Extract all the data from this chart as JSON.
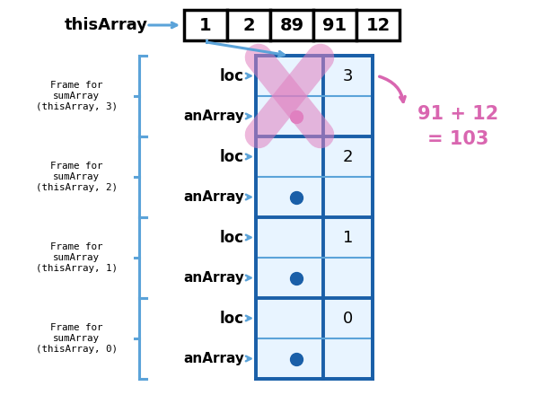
{
  "bg_color": "#ffffff",
  "blue": "#5ba3d9",
  "dark_blue": "#1a5fa8",
  "pink": "#d966b0",
  "pink_fill": "#e080c0",
  "array_values": [
    "1",
    "2",
    "89",
    "91",
    "12"
  ],
  "array_label": "thisArray",
  "stack_frames": [
    {
      "loc_val": "3",
      "label": "(thisArray, 3)",
      "highlighted": true
    },
    {
      "loc_val": "2",
      "label": "(thisArray, 2)",
      "highlighted": false
    },
    {
      "loc_val": "1",
      "label": "(thisArray, 1)",
      "highlighted": false
    },
    {
      "loc_val": "0",
      "label": "(thisArray, 0)",
      "highlighted": false
    }
  ],
  "equation_line1": "91 + 12",
  "equation_line2": "= 103"
}
